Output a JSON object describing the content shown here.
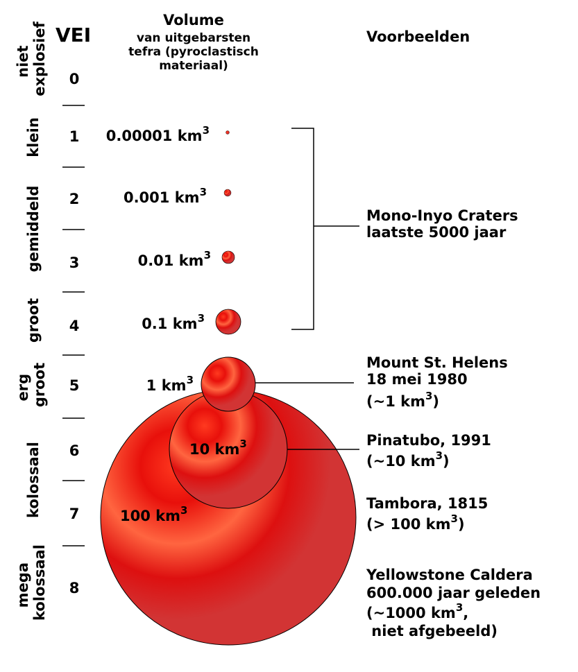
{
  "header": {
    "vei": "VEI",
    "volume_title": "Volume",
    "volume_sub": [
      "van uitgebarsten",
      "tefra (pyroclastisch",
      "materiaal)"
    ],
    "examples_title": "Voorbeelden"
  },
  "categories": [
    {
      "lines": [
        "niet",
        "explosief"
      ]
    },
    {
      "lines": [
        "klein"
      ]
    },
    {
      "lines": [
        "gemiddeld"
      ]
    },
    {
      "lines": [
        "groot"
      ]
    },
    {
      "lines": [
        "erg",
        "groot"
      ]
    },
    {
      "lines": [
        "kolossaal"
      ]
    },
    {
      "lines": [
        "mega",
        "kolossaal"
      ]
    }
  ],
  "vei_levels": [
    "0",
    "1",
    "2",
    "3",
    "4",
    "5",
    "6",
    "7",
    "8"
  ],
  "volumes": [
    {
      "base": "0.00001 km",
      "exp": "3"
    },
    {
      "base": "0.001 km",
      "exp": "3"
    },
    {
      "base": "0.01 km",
      "exp": "3"
    },
    {
      "base": "0.1 km",
      "exp": "3"
    },
    {
      "base": "1 km",
      "exp": "3"
    },
    {
      "base": "10 km",
      "exp": "3"
    },
    {
      "base": "100 km",
      "exp": "3"
    }
  ],
  "examples": {
    "mono_inyo": [
      "Mono-Inyo Craters",
      "laatste 5000 jaar"
    ],
    "st_helens": {
      "lines": [
        "Mount St. Helens",
        "18 mei 1980"
      ],
      "vol_pre": "(~1 km",
      "vol_exp": "3",
      "vol_post": ")"
    },
    "pinatubo": {
      "lines": [
        "Pinatubo, 1991"
      ],
      "vol_pre": "(~10 km",
      "vol_exp": "3",
      "vol_post": ")"
    },
    "tambora": {
      "lines": [
        "Tambora, 1815"
      ],
      "vol_pre": "(> 100 km",
      "vol_exp": "3",
      "vol_post": ")"
    },
    "yellowstone": {
      "lines": [
        "Yellowstone Caldera",
        "600.000 jaar geleden"
      ],
      "vol_pre": "(~1000 km",
      "vol_exp": "3",
      "vol_post": ",",
      "last": " niet afgebeeld)"
    }
  },
  "colors": {
    "sphere_light": "#ff5a3c",
    "sphere_mid": "#e8100b",
    "sphere_dark": "#d23434",
    "ink": "#000000"
  }
}
